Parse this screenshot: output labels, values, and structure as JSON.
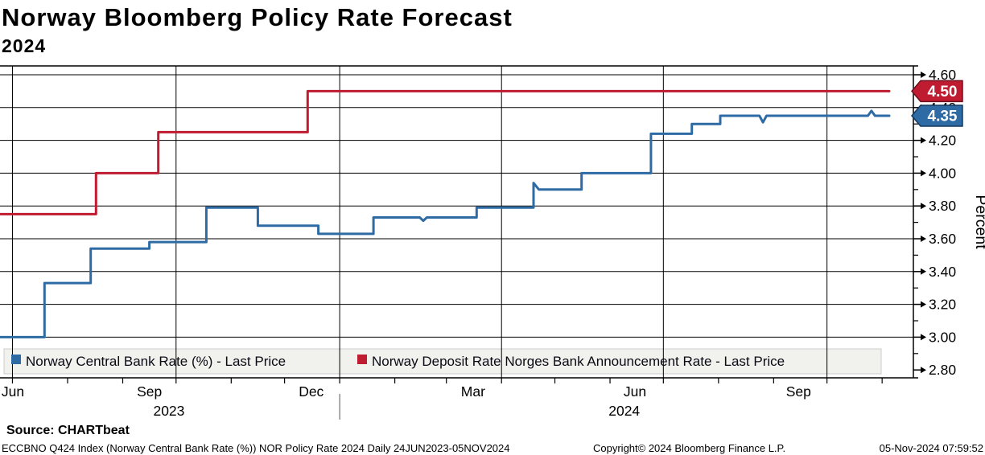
{
  "header": {
    "title": "Norway Bloomberg Policy Rate Forecast",
    "subtitle": "2024"
  },
  "footer": {
    "source": "Source: CHARTbeat",
    "info_left": "ECCBNO Q424 Index (Norway Central Bank Rate (%)) NOR Policy Rate 2024  Daily 24JUN2023-05NOV2024",
    "copyright": "Copyright© 2024 Bloomberg Finance L.P.",
    "timestamp": "05-Nov-2024 07:59:52"
  },
  "chart_data": {
    "type": "line",
    "step": true,
    "title": "Norway Bloomberg Policy Rate Forecast 2024",
    "ylabel": "Percent",
    "ylim": [
      2.75,
      4.65
    ],
    "yticks": [
      4.6,
      4.4,
      4.2,
      4.0,
      3.8,
      3.6,
      3.4,
      3.2,
      3.0,
      2.8
    ],
    "y_minor_ticks": [
      4.5,
      4.3,
      4.1,
      3.9,
      3.7,
      3.5,
      3.3,
      3.1,
      2.9
    ],
    "x_start_date": "24JUN2023",
    "x_end_date": "05NOV2024",
    "x_total_days": 500,
    "grid": true,
    "legend_position": "bottom-inside",
    "month_tick_days": [
      7,
      38,
      69,
      99,
      130,
      160,
      191,
      222,
      251,
      282,
      312,
      343,
      373,
      404,
      435,
      465,
      496
    ],
    "quarter_gridline_days": [
      7,
      99,
      191,
      282,
      373,
      465
    ],
    "month_labels": [
      {
        "label": "Jun",
        "day": -9
      },
      {
        "label": "Sep",
        "day": 84
      },
      {
        "label": "Dec",
        "day": 175
      },
      {
        "label": "Mar",
        "day": 266
      },
      {
        "label": "Jun",
        "day": 357
      },
      {
        "label": "Sep",
        "day": 449
      }
    ],
    "year_labels": [
      {
        "label": "2023",
        "day": 95
      },
      {
        "label": "2024",
        "day": 351
      }
    ],
    "year_separator_day": 191,
    "series": [
      {
        "id": "central-bank-rate",
        "name": "Norway Central Bank Rate (%) - Last Price",
        "color": "#2e6ba4",
        "tag_border": "#16395e",
        "last_price": "4.35",
        "points": [
          [
            0,
            3.0
          ],
          [
            25,
            3.0
          ],
          [
            25,
            3.33
          ],
          [
            51,
            3.33
          ],
          [
            51,
            3.54
          ],
          [
            84,
            3.54
          ],
          [
            84,
            3.58
          ],
          [
            116,
            3.58
          ],
          [
            116,
            3.79
          ],
          [
            145,
            3.79
          ],
          [
            145,
            3.68
          ],
          [
            179,
            3.68
          ],
          [
            179,
            3.63
          ],
          [
            210,
            3.63
          ],
          [
            210,
            3.73
          ],
          [
            236,
            3.73
          ],
          [
            238,
            3.71
          ],
          [
            240,
            3.73
          ],
          [
            268,
            3.73
          ],
          [
            268,
            3.79
          ],
          [
            300,
            3.79
          ],
          [
            300,
            3.94
          ],
          [
            303,
            3.9
          ],
          [
            327,
            3.9
          ],
          [
            327,
            4.0
          ],
          [
            366,
            4.0
          ],
          [
            366,
            4.24
          ],
          [
            389,
            4.24
          ],
          [
            389,
            4.3
          ],
          [
            405,
            4.3
          ],
          [
            405,
            4.35
          ],
          [
            427,
            4.35
          ],
          [
            429,
            4.31
          ],
          [
            431,
            4.35
          ],
          [
            488,
            4.35
          ],
          [
            490,
            4.38
          ],
          [
            492,
            4.35
          ],
          [
            500,
            4.35
          ]
        ]
      },
      {
        "id": "deposit-rate",
        "name": "Norway Deposit Rate Norges Bank Announcement Rate - Last Price",
        "color": "#bf1c31",
        "tag_border": "#6e0f1d",
        "last_price": "4.50",
        "points": [
          [
            0,
            3.75
          ],
          [
            54,
            3.75
          ],
          [
            54,
            4.0
          ],
          [
            89,
            4.0
          ],
          [
            89,
            4.25
          ],
          [
            173,
            4.25
          ],
          [
            173,
            4.5
          ],
          [
            500,
            4.5
          ]
        ]
      }
    ],
    "legend_bg": "#f1f1ee",
    "legend_border": "#cccccb",
    "grid_color": "#000000",
    "text_color": "#000000"
  }
}
